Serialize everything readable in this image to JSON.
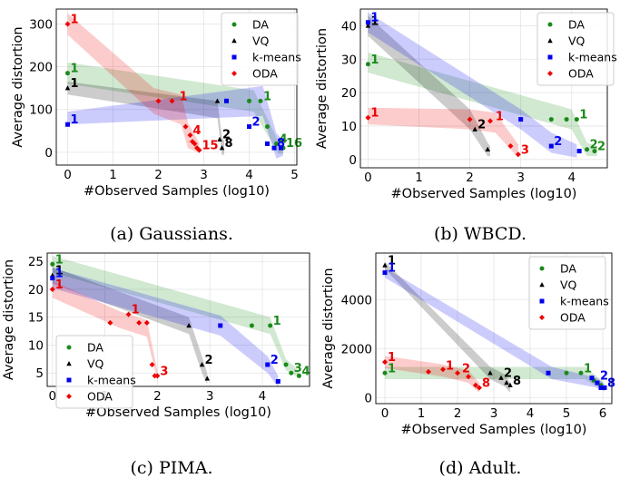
{
  "colors": {
    "DA": "#1a8a1a",
    "VQ": "#000000",
    "k-means": "#0000ee",
    "ODA": "#ee0000"
  },
  "chart_data": [
    {
      "type": "scatter",
      "caption": "(a) Gaussians.",
      "xlabel": "#Observed Samples (log10)",
      "ylabel": "Average distortion",
      "xlim": [
        -0.25,
        5.05
      ],
      "ylim": [
        -30,
        335
      ],
      "xticks": [
        0,
        1,
        2,
        3,
        4,
        5
      ],
      "yticks": [
        0,
        100,
        200,
        300
      ],
      "xtick_labels": [
        "0",
        "1",
        "2",
        "3",
        "4",
        "5"
      ],
      "ytick_labels": [
        "0",
        "100",
        "200",
        "300"
      ],
      "legend": {
        "placement": "top-right",
        "entries": [
          "DA",
          "VQ",
          "k-means",
          "ODA"
        ]
      },
      "series": [
        {
          "name": "DA",
          "band": [
            [
              0,
              185,
              25
            ],
            [
              4.1,
              120,
              25
            ],
            [
              4.65,
              10,
              14
            ],
            [
              4.75,
              10,
              12
            ]
          ],
          "x": [
            0,
            4.0,
            4.25,
            4.4,
            4.6,
            4.75
          ],
          "y": [
            185,
            120,
            120,
            60,
            20,
            10
          ],
          "labels": [
            {
              "x": 0,
              "y": 185,
              "text": "1"
            },
            {
              "x": 4.25,
              "y": 120,
              "text": "1"
            },
            {
              "x": 4.6,
              "y": 20,
              "text": "4"
            },
            {
              "x": 4.75,
              "y": 10,
              "text": "16"
            }
          ]
        },
        {
          "name": "VQ",
          "band": [
            [
              0,
              150,
              15
            ],
            [
              3.3,
              100,
              20
            ],
            [
              3.4,
              15,
              22
            ],
            [
              3.45,
              10,
              15
            ]
          ],
          "x": [
            0,
            3.3,
            3.35,
            3.4
          ],
          "y": [
            150,
            120,
            30,
            10
          ],
          "labels": [
            {
              "x": 0,
              "y": 150,
              "text": "1"
            },
            {
              "x": 3.35,
              "y": 30,
              "text": "2"
            },
            {
              "x": 3.4,
              "y": 10,
              "text": "8"
            }
          ]
        },
        {
          "name": "k-means",
          "band": [
            [
              0,
              80,
              15
            ],
            [
              4.3,
              120,
              35
            ],
            [
              4.6,
              15,
              30
            ],
            [
              4.75,
              10,
              18
            ]
          ],
          "x": [
            0,
            3.5,
            4.0,
            4.4,
            4.55,
            4.7
          ],
          "y": [
            65,
            120,
            60,
            20,
            10,
            10
          ],
          "labels": [
            {
              "x": 0,
              "y": 65,
              "text": "1"
            },
            {
              "x": 4.0,
              "y": 60,
              "text": "2"
            },
            {
              "x": 4.55,
              "y": 10,
              "text": "8"
            }
          ]
        },
        {
          "name": "ODA",
          "band": [
            [
              0,
              300,
              25
            ],
            [
              1.9,
              120,
              30
            ],
            [
              2.5,
              100,
              35
            ],
            [
              2.65,
              40,
              30
            ],
            [
              2.9,
              10,
              12
            ]
          ],
          "x": [
            0,
            2.0,
            2.3,
            2.6,
            2.7,
            2.75,
            2.8,
            2.85,
            2.9
          ],
          "y": [
            300,
            120,
            120,
            60,
            40,
            25,
            20,
            10,
            5
          ],
          "labels": [
            {
              "x": 0,
              "y": 300,
              "text": "1"
            },
            {
              "x": 2.4,
              "y": 120,
              "text": "1"
            },
            {
              "x": 2.7,
              "y": 40,
              "text": "4"
            },
            {
              "x": 2.9,
              "y": 5,
              "text": "15"
            }
          ]
        }
      ]
    },
    {
      "type": "scatter",
      "caption": "(b) WBCD.",
      "xlabel": "#Observed Samples (log10)",
      "ylabel": "Average distortion",
      "xlim": [
        -0.15,
        4.7
      ],
      "ylim": [
        -2.5,
        45
      ],
      "xticks": [
        0,
        1,
        2,
        3,
        4
      ],
      "yticks": [
        0,
        10,
        20,
        30,
        40
      ],
      "xtick_labels": [
        "0",
        "1",
        "2",
        "3",
        "4"
      ],
      "ytick_labels": [
        "0",
        "10",
        "20",
        "30",
        "40"
      ],
      "legend": {
        "placement": "top-right",
        "entries": [
          "DA",
          "VQ",
          "k-means",
          "ODA"
        ]
      },
      "series": [
        {
          "name": "DA",
          "band": [
            [
              0,
              29,
              3
            ],
            [
              4.0,
              12,
              3
            ],
            [
              4.3,
              3,
              2
            ],
            [
              4.5,
              2.5,
              1.5
            ]
          ],
          "x": [
            0,
            3.6,
            3.9,
            4.1,
            4.3,
            4.45
          ],
          "y": [
            28.5,
            12,
            12,
            12,
            3,
            2.5
          ],
          "labels": [
            {
              "x": 0,
              "y": 28.5,
              "text": "1"
            },
            {
              "x": 4.1,
              "y": 12,
              "text": "1"
            },
            {
              "x": 4.3,
              "y": 3,
              "text": "2"
            },
            {
              "x": 4.45,
              "y": 2.5,
              "text": "2"
            }
          ]
        },
        {
          "name": "VQ",
          "band": [
            [
              0,
              40,
              3
            ],
            [
              2.0,
              12,
              3
            ],
            [
              2.35,
              3,
              2
            ],
            [
              2.4,
              2.5,
              1.5
            ]
          ],
          "x": [
            0,
            2.1,
            2.35
          ],
          "y": [
            40,
            9,
            3
          ],
          "labels": [
            {
              "x": 0,
              "y": 40,
              "text": "1"
            },
            {
              "x": 2.1,
              "y": 9,
              "text": "2"
            }
          ]
        },
        {
          "name": "k-means",
          "band": [
            [
              0,
              41,
              3
            ],
            [
              3.0,
              12,
              3
            ],
            [
              3.6,
              5,
              3
            ],
            [
              4.1,
              2.5,
              2
            ]
          ],
          "x": [
            0,
            3.0,
            3.6,
            4.15
          ],
          "y": [
            41,
            12,
            4,
            2.5
          ],
          "labels": [
            {
              "x": 0,
              "y": 41,
              "text": "1"
            },
            {
              "x": 3.6,
              "y": 4,
              "text": "2"
            }
          ]
        },
        {
          "name": "ODA",
          "band": [
            [
              0,
              13,
              2.5
            ],
            [
              2.0,
              12,
              3
            ],
            [
              2.5,
              11,
              3
            ],
            [
              2.95,
              2.5,
              2
            ]
          ],
          "x": [
            0,
            2.0,
            2.4,
            2.8,
            2.95
          ],
          "y": [
            12.5,
            12,
            11.5,
            4,
            1.5
          ],
          "labels": [
            {
              "x": 0,
              "y": 12.5,
              "text": "1"
            },
            {
              "x": 2.45,
              "y": 11.5,
              "text": "1"
            },
            {
              "x": 2.95,
              "y": 1.5,
              "text": "3"
            }
          ]
        }
      ]
    },
    {
      "type": "scatter",
      "caption": "(c) PIMA.",
      "xlabel": "#Observed Samples (log10)",
      "ylabel": "Average distortion",
      "xlim": [
        -0.1,
        4.9
      ],
      "ylim": [
        2.6,
        26.5
      ],
      "xticks": [
        0,
        1,
        2,
        3,
        4
      ],
      "yticks": [
        5,
        10,
        15,
        20,
        25
      ],
      "xtick_labels": [
        "0",
        "1",
        "2",
        "3",
        "4"
      ],
      "ytick_labels": [
        "5",
        "10",
        "15",
        "20",
        "25"
      ],
      "legend": {
        "placement": "bottom-left",
        "entries": [
          "DA",
          "VQ",
          "k-means",
          "ODA"
        ]
      },
      "series": [
        {
          "name": "DA",
          "band": [
            [
              0,
              24.5,
              1.5
            ],
            [
              4.15,
              13.5,
              1.5
            ],
            [
              4.45,
              6.5,
              1.0
            ],
            [
              4.7,
              4.8,
              0.6
            ]
          ],
          "x": [
            0,
            3.8,
            4.15,
            4.45,
            4.55,
            4.7
          ],
          "y": [
            24.5,
            13.5,
            13.5,
            6.5,
            5.0,
            4.5
          ],
          "labels": [
            {
              "x": 0,
              "y": 24.5,
              "text": "1"
            },
            {
              "x": 4.15,
              "y": 13.5,
              "text": "1"
            },
            {
              "x": 4.55,
              "y": 5.0,
              "text": "3"
            },
            {
              "x": 4.7,
              "y": 4.5,
              "text": "4"
            }
          ]
        },
        {
          "name": "VQ",
          "band": [
            [
              0,
              22.5,
              1.5
            ],
            [
              2.6,
              13.5,
              1.5
            ],
            [
              2.85,
              6.5,
              1.5
            ],
            [
              2.95,
              4,
              1
            ]
          ],
          "x": [
            0,
            2.6,
            2.85,
            2.95
          ],
          "y": [
            22.5,
            13.5,
            6.5,
            4
          ],
          "labels": [
            {
              "x": 0,
              "y": 22.5,
              "text": "1"
            },
            {
              "x": 2.85,
              "y": 6.5,
              "text": "2"
            }
          ]
        },
        {
          "name": "k-means",
          "band": [
            [
              0,
              22,
              1.8
            ],
            [
              3.2,
              13.5,
              1.8
            ],
            [
              4.1,
              6.5,
              1.5
            ],
            [
              4.3,
              3.5,
              1
            ]
          ],
          "x": [
            0,
            3.2,
            4.1,
            4.3
          ],
          "y": [
            22,
            13.5,
            6.5,
            3.5
          ],
          "labels": [
            {
              "x": 0,
              "y": 22,
              "text": "1"
            },
            {
              "x": 4.1,
              "y": 6.5,
              "text": "2"
            }
          ]
        },
        {
          "name": "ODA",
          "band": [
            [
              0,
              20,
              1.5
            ],
            [
              1.3,
              14.5,
              1.5
            ],
            [
              1.8,
              13,
              1.5
            ],
            [
              2.0,
              4.5,
              0.8
            ]
          ],
          "x": [
            0,
            1.1,
            1.45,
            1.65,
            1.8,
            1.9,
            1.95,
            2.0
          ],
          "y": [
            20,
            14,
            15.5,
            14,
            14,
            6.5,
            4.5,
            4.5
          ],
          "labels": [
            {
              "x": 0,
              "y": 20,
              "text": "1"
            },
            {
              "x": 1.45,
              "y": 15.5,
              "text": "1"
            },
            {
              "x": 2.0,
              "y": 4.5,
              "text": "3"
            }
          ]
        }
      ]
    },
    {
      "type": "scatter",
      "caption": "(d) Adult.",
      "xlabel": "#Observed Samples (log10)",
      "ylabel": "Average distortion",
      "xlim": [
        -0.25,
        6.25
      ],
      "ylim": [
        -250,
        5900
      ],
      "xticks": [
        0,
        1,
        2,
        3,
        4,
        5,
        6
      ],
      "yticks": [
        0,
        2000,
        4000
      ],
      "xtick_labels": [
        "0",
        "1",
        "2",
        "3",
        "4",
        "5",
        "6"
      ],
      "ytick_labels": [
        "0",
        "2000",
        "4000"
      ],
      "legend": {
        "placement": "top-right",
        "entries": [
          "DA",
          "VQ",
          "k-means",
          "ODA"
        ]
      },
      "series": [
        {
          "name": "DA",
          "band": [
            [
              0,
              1000,
              250
            ],
            [
              5.5,
              1000,
              250
            ],
            [
              5.9,
              600,
              200
            ],
            [
              6.0,
              500,
              150
            ]
          ],
          "x": [
            0,
            5.0,
            5.4,
            5.75,
            5.85,
            5.95
          ],
          "y": [
            1000,
            1000,
            1000,
            700,
            600,
            500
          ],
          "labels": [
            {
              "x": 0,
              "y": 1000,
              "text": "1"
            },
            {
              "x": 5.4,
              "y": 1000,
              "text": "1"
            }
          ]
        },
        {
          "name": "VQ",
          "band": [
            [
              0,
              5400,
              150
            ],
            [
              2.9,
              1000,
              250
            ],
            [
              3.3,
              700,
              250
            ],
            [
              3.45,
              400,
              200
            ]
          ],
          "x": [
            0,
            2.9,
            3.2,
            3.35,
            3.45
          ],
          "y": [
            5400,
            1000,
            800,
            600,
            500
          ],
          "labels": [
            {
              "x": 0,
              "y": 5400,
              "text": "1"
            },
            {
              "x": 3.2,
              "y": 800,
              "text": "2"
            },
            {
              "x": 3.45,
              "y": 500,
              "text": "8"
            }
          ]
        },
        {
          "name": "k-means",
          "band": [
            [
              0,
              5100,
              200
            ],
            [
              4.6,
              1000,
              250
            ],
            [
              5.85,
              600,
              200
            ],
            [
              6.05,
              400,
              150
            ]
          ],
          "x": [
            0,
            4.5,
            5.7,
            5.85,
            5.95,
            6.05
          ],
          "y": [
            5100,
            1000,
            800,
            600,
            400,
            400
          ],
          "labels": [
            {
              "x": 0,
              "y": 5100,
              "text": "1"
            },
            {
              "x": 5.85,
              "y": 700,
              "text": "2"
            },
            {
              "x": 6.05,
              "y": 400,
              "text": "8"
            }
          ]
        },
        {
          "name": "ODA",
          "band": [
            [
              0,
              1450,
              250
            ],
            [
              1.6,
              1100,
              250
            ],
            [
              2.3,
              850,
              250
            ],
            [
              2.6,
              400,
              200
            ]
          ],
          "x": [
            0,
            1.2,
            1.6,
            2.0,
            2.3,
            2.5,
            2.6
          ],
          "y": [
            1450,
            1050,
            1150,
            1000,
            850,
            500,
            400
          ],
          "labels": [
            {
              "x": 0,
              "y": 1450,
              "text": "1"
            },
            {
              "x": 1.6,
              "y": 1100,
              "text": "1"
            },
            {
              "x": 2.05,
              "y": 1000,
              "text": "2"
            },
            {
              "x": 2.6,
              "y": 400,
              "text": "8"
            }
          ]
        }
      ]
    }
  ]
}
